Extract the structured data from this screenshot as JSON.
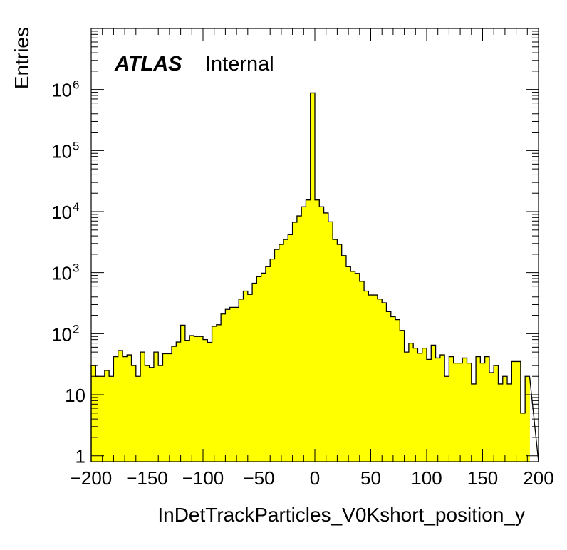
{
  "label": {
    "atlas": "ATLAS",
    "status": "Internal"
  },
  "chart_data": {
    "type": "bar",
    "style": "histogram",
    "xlabel": "InDetTrackParticles_V0Kshort_position_y",
    "ylabel": "Entries",
    "xlim": [
      -200,
      200
    ],
    "ylim": [
      0.8,
      10000000
    ],
    "yscale": "log",
    "fill_color": "#ffff00",
    "line_color": "#000000",
    "x_ticks": [
      -200,
      -150,
      -100,
      -50,
      0,
      50,
      100,
      150,
      200
    ],
    "x_tick_labels": [
      "−200",
      "−150",
      "−100",
      "−50",
      "0",
      "50",
      "100",
      "150",
      "200"
    ],
    "y_ticks": [
      1,
      10,
      100,
      1000,
      10000,
      100000,
      1000000
    ],
    "y_tick_labels": [
      {
        "base": "1",
        "exp": ""
      },
      {
        "base": "10",
        "exp": ""
      },
      {
        "base": "10",
        "exp": "2"
      },
      {
        "base": "10",
        "exp": "3"
      },
      {
        "base": "10",
        "exp": "4"
      },
      {
        "base": "10",
        "exp": "5"
      },
      {
        "base": "10",
        "exp": "6"
      }
    ],
    "bin_edges_start": -200,
    "bin_width": 4,
    "values": [
      30,
      20,
      20,
      25,
      20,
      42,
      53,
      42,
      45,
      30,
      20,
      50,
      30,
      28,
      50,
      30,
      47,
      47,
      62,
      73,
      138,
      78,
      93,
      90,
      90,
      80,
      72,
      132,
      140,
      210,
      250,
      270,
      270,
      368,
      500,
      440,
      670,
      860,
      980,
      1250,
      1670,
      2400,
      2900,
      3500,
      4200,
      6700,
      8500,
      12000,
      15500,
      880000,
      15500,
      12000,
      9500,
      6800,
      3500,
      2900,
      1900,
      1250,
      1050,
      970,
      720,
      500,
      430,
      430,
      370,
      320,
      230,
      190,
      170,
      113,
      50,
      70,
      58,
      48,
      58,
      38,
      65,
      40,
      45,
      20,
      42,
      33,
      33,
      40,
      33,
      15,
      42,
      33,
      42,
      23,
      30,
      15,
      20,
      15,
      35,
      35,
      5,
      20
    ]
  }
}
